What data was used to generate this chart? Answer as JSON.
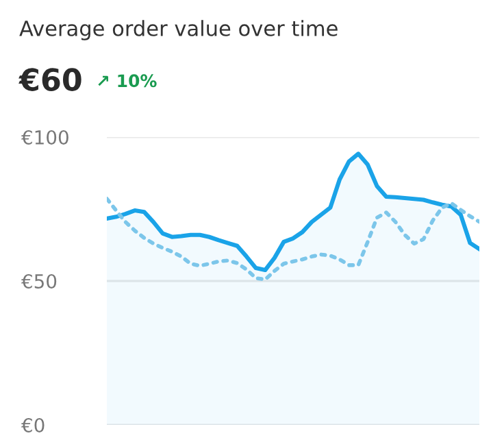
{
  "chart_data": {
    "type": "line",
    "title": "Average order value over time",
    "subtitle": "€60",
    "annotations": [
      "↗ 10%"
    ],
    "categories": [
      null,
      null,
      null,
      null,
      null,
      null,
      null,
      null,
      null,
      null,
      null,
      null,
      null,
      null,
      null,
      null,
      null,
      null,
      null,
      null,
      null,
      null,
      null,
      null,
      null,
      null,
      null,
      null,
      null,
      null,
      null,
      null,
      null,
      null,
      null,
      null,
      null,
      null,
      null,
      null,
      null
    ],
    "series": [
      {
        "type": "area",
        "color": "#1aa3e8",
        "line_style": "solid",
        "values": [
          71.7,
          72.3,
          73.3,
          74.5,
          74.0,
          70.5,
          66.5,
          65.3,
          65.6,
          66,
          66,
          65.3,
          64.2,
          63.2,
          62.2,
          58.5,
          54.5,
          53.8,
          58,
          63.6,
          64.8,
          67,
          70.5,
          73,
          75.5,
          85.3,
          91.5,
          94.2,
          90.5,
          83,
          79.3,
          79.1,
          78.8,
          78.5,
          78.2,
          77.3,
          76.5,
          75.9,
          73,
          63.2,
          61.1
        ]
      },
      {
        "color": "#7cc6ea",
        "line_style": "dotted",
        "values": [
          78.6,
          74.5,
          70.5,
          67.5,
          65,
          63,
          61.5,
          60.2,
          58.5,
          56,
          55.3,
          56,
          56.8,
          57.1,
          56.2,
          54,
          51,
          50.5,
          53.5,
          56,
          56.8,
          57.5,
          58.5,
          59.2,
          58.8,
          57.5,
          55.5,
          55.5,
          63.5,
          72,
          73.8,
          70.5,
          66,
          63,
          64.5,
          71,
          75.5,
          77,
          74.7,
          72.5,
          70.6
        ]
      }
    ],
    "ylim": [
      0,
      100
    ],
    "yticks": [
      {
        "value": 0,
        "label": "€0"
      },
      {
        "value": 50,
        "label": "€50"
      },
      {
        "value": 100,
        "label": "€100"
      }
    ],
    "tick_labels": "y",
    "grid": "y"
  }
}
